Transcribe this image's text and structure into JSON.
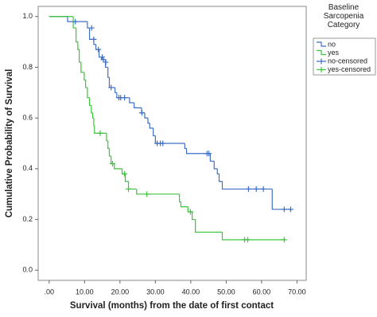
{
  "chart_data": {
    "type": "line",
    "step": "post",
    "x_label": "Survival (months) from the date of first contact",
    "y_label": "Cumulative Probability of Survival",
    "legend_title": "Baseline Sarcopenia Category",
    "legend": "right",
    "xlim": [
      -3.1,
      72.6
    ],
    "ylim": [
      -0.04,
      1.04
    ],
    "xticks": [
      {
        "value": 0,
        "label": ".00"
      },
      {
        "value": 10,
        "label": "10.00"
      },
      {
        "value": 20,
        "label": "20.00"
      },
      {
        "value": 30,
        "label": "30.00"
      },
      {
        "value": 40,
        "label": "40.00"
      },
      {
        "value": 50,
        "label": "50.00"
      },
      {
        "value": 60,
        "label": "60.00"
      },
      {
        "value": 70,
        "label": "70.00"
      }
    ],
    "yticks": [
      {
        "value": 0,
        "label": "0.0"
      },
      0.2,
      0.4,
      0.6,
      0.8,
      {
        "value": 1,
        "label": "1.0"
      }
    ],
    "series": [
      {
        "name": "no",
        "color": "#3f6fc6",
        "marker": "none",
        "x": [
          0,
          5.2,
          10.8,
          11.4,
          12.6,
          13.2,
          14.1,
          14.8,
          15.9,
          16.6,
          17.0,
          18.6,
          19.1,
          22.7,
          24.0,
          26.1,
          27.0,
          27.9,
          28.4,
          29.4,
          30.0,
          38.3,
          38.8,
          45.5,
          46.6,
          47.5,
          48.0,
          48.9,
          63.0,
          68.6
        ],
        "values": [
          1.0,
          0.98,
          0.955,
          0.91,
          0.89,
          0.87,
          0.84,
          0.83,
          0.8,
          0.76,
          0.72,
          0.7,
          0.68,
          0.66,
          0.64,
          0.62,
          0.6,
          0.58,
          0.56,
          0.53,
          0.5,
          0.48,
          0.46,
          0.43,
          0.4,
          0.38,
          0.35,
          0.32,
          0.24,
          0.24
        ]
      },
      {
        "name": "yes",
        "color": "#3cc43c",
        "marker": "none",
        "x": [
          0,
          6.8,
          7.6,
          8.1,
          8.5,
          9.0,
          9.9,
          10.3,
          10.8,
          11.4,
          11.9,
          12.3,
          12.6,
          12.8,
          16.2,
          16.6,
          17.0,
          17.5,
          18.4,
          20.6,
          21.5,
          22.4,
          24.7,
          36.8,
          37.2,
          39.2,
          40.4,
          41.3,
          48.9,
          66.4
        ],
        "values": [
          1.0,
          0.955,
          0.9,
          0.87,
          0.82,
          0.78,
          0.75,
          0.72,
          0.68,
          0.65,
          0.62,
          0.6,
          0.57,
          0.54,
          0.51,
          0.48,
          0.45,
          0.42,
          0.4,
          0.38,
          0.35,
          0.32,
          0.3,
          0.27,
          0.25,
          0.23,
          0.2,
          0.15,
          0.12,
          0.12
        ]
      },
      {
        "name": "no-censored",
        "color": "#3f6fc6",
        "marker": "plus",
        "x": [
          7.4,
          12.0,
          12.6,
          13.9,
          15.0,
          15.3,
          16.0,
          17.5,
          19.7,
          20.2,
          21.3,
          26.2,
          30.5,
          31.4,
          32.1,
          44.6,
          45.1,
          56.3,
          58.5,
          60.5,
          66.4,
          68.2
        ],
        "values": [
          0.98,
          0.955,
          0.91,
          0.87,
          0.84,
          0.83,
          0.82,
          0.72,
          0.68,
          0.68,
          0.68,
          0.62,
          0.5,
          0.5,
          0.5,
          0.46,
          0.46,
          0.32,
          0.32,
          0.32,
          0.24,
          0.24
        ]
      },
      {
        "name": "yes-censored",
        "color": "#3cc43c",
        "marker": "plus",
        "x": [
          14.4,
          17.9,
          21.3,
          22.4,
          27.6,
          39.9,
          55.2,
          56.1,
          66.4
        ],
        "values": [
          0.54,
          0.42,
          0.38,
          0.32,
          0.3,
          0.23,
          0.12,
          0.12,
          0.12
        ]
      }
    ]
  }
}
